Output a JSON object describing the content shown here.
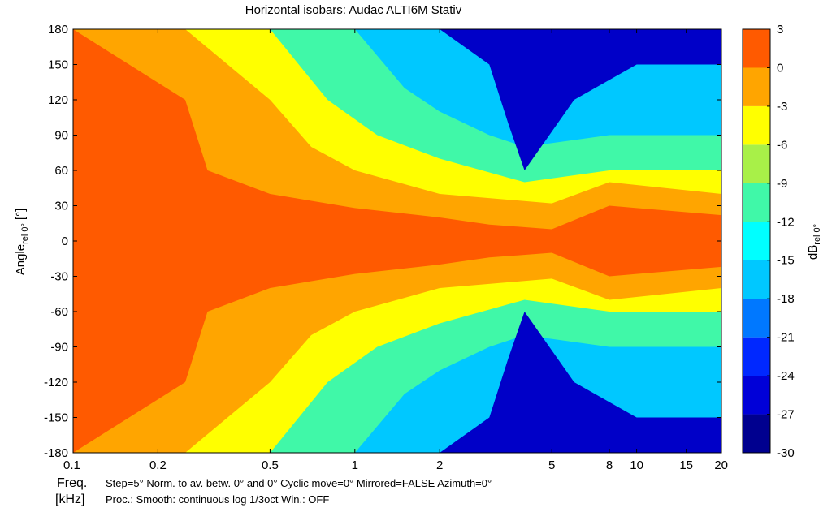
{
  "chart_data": {
    "type": "heatmap",
    "title": "Horizontal isobars: Audac  ALTI6M  Stativ",
    "xlabel": "Freq.",
    "xunit": "[kHz]",
    "ylabel_main": "Angle",
    "ylabel_sub": "rel 0°",
    "ylabel_unit": "[°]",
    "colorbar_label_main": "dB",
    "colorbar_label_sub": "rel 0°",
    "x_scale": "log",
    "x_range": [
      0.1,
      20
    ],
    "y_range": [
      -180,
      180
    ],
    "x_ticks": [
      {
        "v": 0.1,
        "label": "0.1"
      },
      {
        "v": 0.2,
        "label": "0.2"
      },
      {
        "v": 0.5,
        "label": "0.5"
      },
      {
        "v": 1,
        "label": "1"
      },
      {
        "v": 2,
        "label": "2"
      },
      {
        "v": 5,
        "label": "5"
      },
      {
        "v": 8,
        "label": "8"
      },
      {
        "v": 10,
        "label": "10"
      },
      {
        "v": 15,
        "label": "15"
      },
      {
        "v": 20,
        "label": "20"
      }
    ],
    "y_ticks": [
      "180",
      "150",
      "120",
      "90",
      "60",
      "30",
      "0",
      "-30",
      "-60",
      "-90",
      "-120",
      "-150",
      "-180"
    ],
    "colorbar_ticks": [
      "3",
      "0",
      "-3",
      "-6",
      "-9",
      "-12",
      "-15",
      "-18",
      "-21",
      "-24",
      "-27",
      "-30"
    ],
    "color_levels": [
      {
        "from": -30,
        "to": -27,
        "color": "#00008f"
      },
      {
        "from": -27,
        "to": -24,
        "color": "#0000d8"
      },
      {
        "from": -24,
        "to": -21,
        "color": "#0028ff"
      },
      {
        "from": -21,
        "to": -18,
        "color": "#0078ff"
      },
      {
        "from": -18,
        "to": -15,
        "color": "#00c8ff"
      },
      {
        "from": -15,
        "to": -12,
        "color": "#00ffff"
      },
      {
        "from": -12,
        "to": -9,
        "color": "#40f8a8"
      },
      {
        "from": -9,
        "to": -6,
        "color": "#a8f048"
      },
      {
        "from": -6,
        "to": -3,
        "color": "#ffff00"
      },
      {
        "from": -3,
        "to": 3,
        "color": "#ffa500"
      },
      {
        "from": 0,
        "to": 3,
        "color": "#ff5a00"
      }
    ],
    "contour_boundaries": [
      {
        "level": -3,
        "points": [
          [
            0.1,
            180
          ],
          [
            0.25,
            120
          ],
          [
            0.3,
            60
          ],
          [
            0.5,
            40
          ],
          [
            1,
            28
          ],
          [
            2,
            20
          ],
          [
            3,
            14
          ],
          [
            5,
            10
          ],
          [
            8,
            30
          ],
          [
            10,
            28
          ],
          [
            20,
            22
          ]
        ]
      },
      {
        "level": -6,
        "points": [
          [
            0.25,
            180
          ],
          [
            0.5,
            120
          ],
          [
            0.7,
            80
          ],
          [
            1,
            60
          ],
          [
            2,
            40
          ],
          [
            5,
            32
          ],
          [
            8,
            50
          ],
          [
            20,
            40
          ]
        ]
      },
      {
        "level": -9,
        "points": [
          [
            0.5,
            180
          ],
          [
            0.8,
            120
          ],
          [
            1.2,
            90
          ],
          [
            2,
            70
          ],
          [
            4,
            50
          ],
          [
            8,
            60
          ],
          [
            20,
            60
          ]
        ]
      },
      {
        "level": -15,
        "points": [
          [
            1,
            180
          ],
          [
            1.5,
            130
          ],
          [
            2,
            110
          ],
          [
            3,
            90
          ],
          [
            4,
            80
          ],
          [
            8,
            90
          ],
          [
            20,
            90
          ]
        ]
      },
      {
        "level": -24,
        "points": [
          [
            2,
            180
          ],
          [
            3,
            150
          ],
          [
            3.5,
            100
          ],
          [
            4,
            60
          ],
          [
            6,
            120
          ],
          [
            10,
            150
          ],
          [
            20,
            150
          ]
        ]
      }
    ]
  },
  "footer": {
    "line1": "Step=5°   Norm. to av. betw. 0° and 0°   Cyclic move=0°   Mirrored=FALSE   Azimuth=0°",
    "line2": "Proc.: Smooth: continuous log 1/3oct    Win.: OFF"
  }
}
